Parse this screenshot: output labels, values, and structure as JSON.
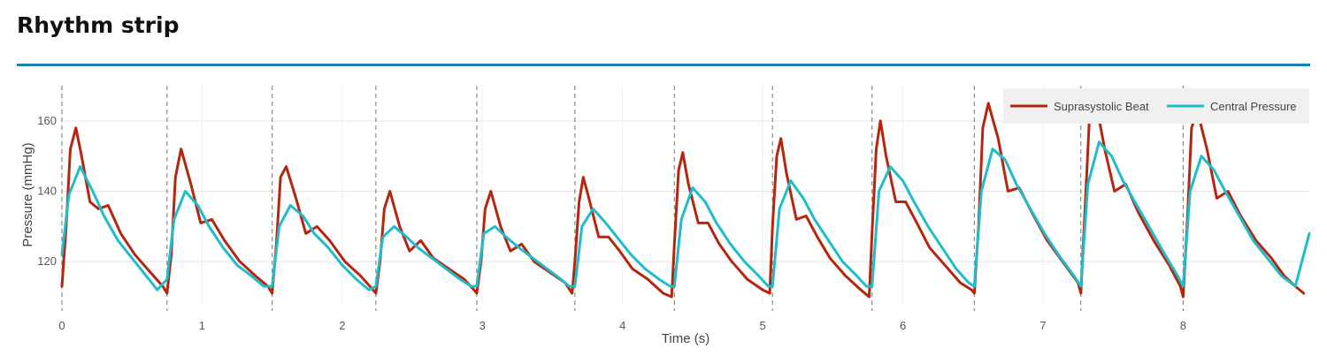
{
  "page": {
    "title": "Rhythm strip"
  },
  "colors": {
    "accent": "#1a84b0",
    "suprasystolic": "#b5260f",
    "central": "#1fbccb"
  },
  "chart_data": {
    "type": "line",
    "xlabel": "Time (s)",
    "ylabel": "Pressure (mmHg)",
    "xlim": [
      0,
      8.9
    ],
    "ylim": [
      108,
      170
    ],
    "xticks": [
      "0",
      "1",
      "2",
      "3",
      "4",
      "5",
      "6",
      "7",
      "8"
    ],
    "yticks": [
      "120",
      "140",
      "160"
    ],
    "grid": true,
    "legend": "top-right",
    "beat_markers": [
      0.0,
      0.75,
      1.5,
      2.24,
      2.96,
      3.66,
      4.37,
      5.07,
      5.78,
      6.51,
      7.27,
      8.0
    ],
    "series": [
      {
        "name": "Suprasystolic Beat",
        "color": "#b5260f",
        "x": [
          0.0,
          0.03,
          0.06,
          0.1,
          0.14,
          0.2,
          0.26,
          0.33,
          0.42,
          0.52,
          0.63,
          0.72,
          0.75,
          0.78,
          0.81,
          0.85,
          0.92,
          0.99,
          1.07,
          1.16,
          1.27,
          1.38,
          1.47,
          1.5,
          1.53,
          1.56,
          1.6,
          1.67,
          1.74,
          1.82,
          1.91,
          2.02,
          2.13,
          2.22,
          2.24,
          2.27,
          2.3,
          2.34,
          2.41,
          2.48,
          2.56,
          2.65,
          2.76,
          2.87,
          2.94,
          2.96,
          2.99,
          3.02,
          3.06,
          3.13,
          3.2,
          3.28,
          3.37,
          3.48,
          3.59,
          3.64,
          3.66,
          3.69,
          3.72,
          3.76,
          3.83,
          3.9,
          3.98,
          4.07,
          4.18,
          4.29,
          4.35,
          4.37,
          4.4,
          4.43,
          4.47,
          4.54,
          4.61,
          4.69,
          4.78,
          4.89,
          5.0,
          5.05,
          5.07,
          5.1,
          5.13,
          5.17,
          5.24,
          5.31,
          5.39,
          5.48,
          5.59,
          5.7,
          5.76,
          5.78,
          5.81,
          5.84,
          5.88,
          5.95,
          6.02,
          6.1,
          6.19,
          6.3,
          6.41,
          6.49,
          6.51,
          6.54,
          6.57,
          6.61,
          6.68,
          6.75,
          6.83,
          6.92,
          7.03,
          7.14,
          7.25,
          7.27,
          7.3,
          7.33,
          7.37,
          7.44,
          7.51,
          7.59,
          7.68,
          7.79,
          7.9,
          7.98,
          8.0,
          8.03,
          8.06,
          8.1,
          8.17,
          8.24,
          8.32,
          8.41,
          8.52,
          8.63,
          8.72,
          8.8,
          8.86
        ],
        "y": [
          113,
          130,
          152,
          158,
          150,
          137,
          135,
          136,
          128,
          122,
          117,
          113,
          111,
          122,
          144,
          152,
          142,
          131,
          132,
          126,
          120,
          116,
          113,
          111,
          125,
          144,
          147,
          138,
          128,
          130,
          126,
          120,
          116,
          112,
          111,
          120,
          135,
          140,
          130,
          123,
          126,
          121,
          118,
          115,
          112,
          111,
          120,
          135,
          140,
          130,
          123,
          125,
          120,
          117,
          114,
          111,
          120,
          137,
          144,
          138,
          127,
          127,
          123,
          118,
          115,
          111,
          110,
          125,
          146,
          151,
          142,
          131,
          131,
          125,
          120,
          115,
          112,
          111,
          130,
          150,
          155,
          145,
          132,
          133,
          127,
          121,
          116,
          112,
          110,
          128,
          152,
          160,
          150,
          137,
          137,
          131,
          124,
          119,
          114,
          112,
          111,
          130,
          158,
          165,
          155,
          140,
          141,
          134,
          126,
          120,
          114,
          111,
          135,
          160,
          167,
          152,
          140,
          142,
          134,
          126,
          119,
          113,
          110,
          132,
          158,
          163,
          152,
          138,
          140,
          133,
          126,
          121,
          116,
          113,
          111
        ]
      },
      {
        "name": "Central Pressure",
        "color": "#1fbccb",
        "x": [
          0.0,
          0.05,
          0.13,
          0.22,
          0.3,
          0.4,
          0.5,
          0.6,
          0.68,
          0.75,
          0.8,
          0.88,
          0.97,
          1.05,
          1.15,
          1.25,
          1.35,
          1.44,
          1.5,
          1.55,
          1.63,
          1.72,
          1.8,
          1.9,
          2.0,
          2.1,
          2.19,
          2.24,
          2.29,
          2.37,
          2.46,
          2.54,
          2.64,
          2.74,
          2.84,
          2.92,
          2.96,
          3.01,
          3.09,
          3.17,
          3.26,
          3.36,
          3.46,
          3.56,
          3.62,
          3.66,
          3.71,
          3.79,
          3.88,
          3.96,
          4.06,
          4.16,
          4.26,
          4.34,
          4.37,
          4.42,
          4.5,
          4.59,
          4.67,
          4.77,
          4.87,
          4.97,
          5.04,
          5.07,
          5.12,
          5.2,
          5.29,
          5.37,
          5.47,
          5.57,
          5.67,
          5.74,
          5.78,
          5.83,
          5.91,
          6.0,
          6.08,
          6.18,
          6.28,
          6.38,
          6.47,
          6.51,
          6.56,
          6.64,
          6.73,
          6.81,
          6.91,
          7.01,
          7.11,
          7.22,
          7.27,
          7.32,
          7.4,
          7.49,
          7.57,
          7.67,
          7.77,
          7.87,
          7.96,
          8.0,
          8.05,
          8.13,
          8.22,
          8.3,
          8.4,
          8.5,
          8.6,
          8.7,
          8.8,
          8.9
        ],
        "y": [
          122,
          139,
          147,
          140,
          133,
          126,
          121,
          116,
          112,
          115,
          132,
          140,
          136,
          130,
          124,
          119,
          116,
          113,
          113,
          130,
          136,
          133,
          128,
          124,
          119,
          115,
          112,
          113,
          127,
          130,
          127,
          124,
          121,
          118,
          115,
          113,
          113,
          128,
          130,
          127,
          124,
          121,
          118,
          115,
          113,
          113,
          130,
          135,
          131,
          127,
          122,
          118,
          115,
          113,
          113,
          132,
          141,
          137,
          131,
          125,
          120,
          116,
          113,
          113,
          135,
          143,
          138,
          132,
          126,
          120,
          116,
          113,
          113,
          140,
          147,
          143,
          137,
          130,
          124,
          118,
          114,
          113,
          140,
          152,
          149,
          142,
          135,
          128,
          122,
          116,
          113,
          142,
          154,
          150,
          143,
          136,
          129,
          122,
          116,
          113,
          140,
          150,
          146,
          140,
          133,
          126,
          121,
          116,
          113,
          128
        ]
      }
    ]
  }
}
